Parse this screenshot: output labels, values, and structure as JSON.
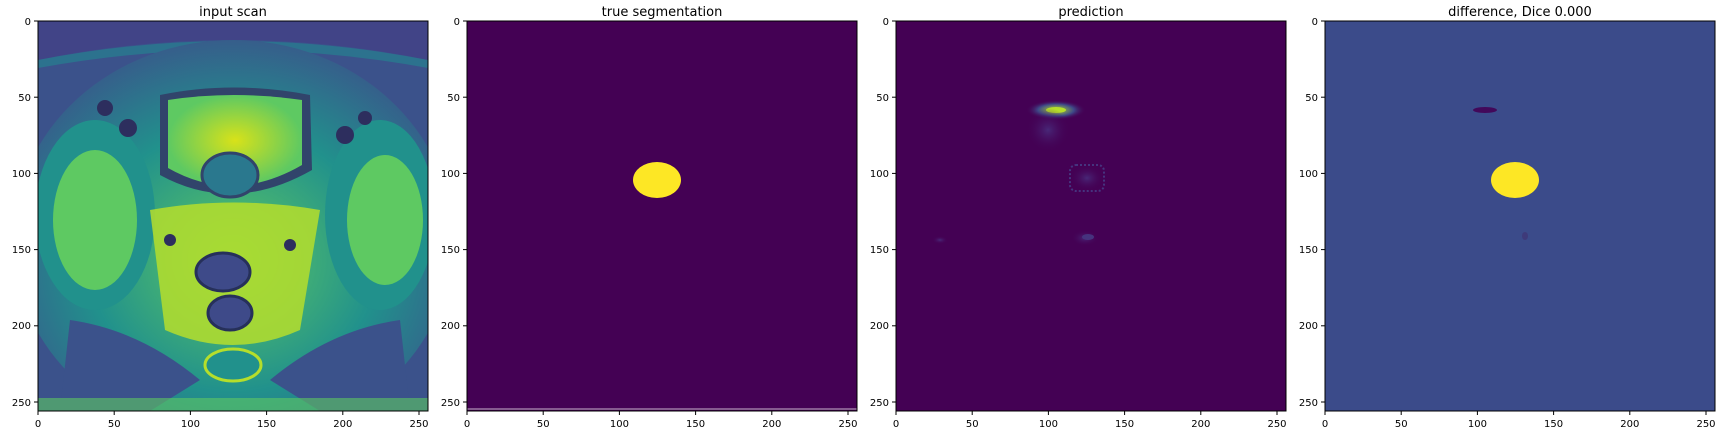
{
  "figure": {
    "panels": [
      {
        "title": "input scan",
        "image": "mri-axial-pelvis-scan"
      },
      {
        "title": "true segmentation",
        "image": "binary-mask-yellow-blob"
      },
      {
        "title": "prediction",
        "image": "faint-prediction-heatmap"
      },
      {
        "title": "difference, Dice 0.000",
        "image": "difference-map-yellow-blob"
      }
    ],
    "x_ticks": [
      "0",
      "50",
      "100",
      "150",
      "200",
      "250"
    ],
    "y_ticks": [
      "0",
      "50",
      "100",
      "150",
      "200",
      "250"
    ],
    "colormap": "viridis",
    "colors": {
      "viridis_dark": "#440154",
      "viridis_mid": "#3b528b",
      "viridis_teal": "#21918c",
      "viridis_green": "#5ec962",
      "viridis_yellow": "#fde725"
    }
  }
}
